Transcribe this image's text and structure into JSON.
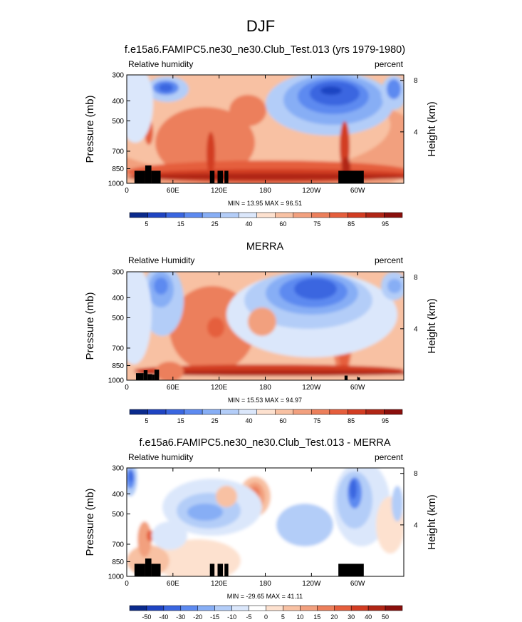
{
  "figure": {
    "title": "DJF",
    "colors": {
      "rh_levels": [
        "#0a2a8c",
        "#1f44c2",
        "#3a66e0",
        "#5d8af0",
        "#87aef5",
        "#b3cdf8",
        "#dbe7fb",
        "#fde1cf",
        "#f8c1a3",
        "#f2a07e",
        "#ec7f5b",
        "#e55e3c",
        "#d23c22",
        "#b02515",
        "#8a0f0c"
      ],
      "diff_levels": [
        "#0a2a8c",
        "#1f44c2",
        "#3a66e0",
        "#5d8af0",
        "#87aef5",
        "#b3cdf8",
        "#dbe7fb",
        "#ffffff",
        "#fde1cf",
        "#f8c1a3",
        "#f2a07e",
        "#ec7f5b",
        "#e55e3c",
        "#d23c22",
        "#b02515",
        "#8a0f0c"
      ],
      "terrain": "#000000"
    }
  },
  "chart_data": [
    {
      "type": "heatmap",
      "title": "f.e15a6.FAMIPC5.ne30_ne30.Club_Test.013 (yrs 1979-1980)",
      "left_label": "Relative humidity",
      "right_label": "percent",
      "ylabel": "Pressure (mb)",
      "y2label": "Height (km)",
      "x_ticks": [
        "0",
        "60E",
        "120E",
        "180",
        "120W",
        "60W"
      ],
      "x_tick_lon": [
        0,
        60,
        120,
        180,
        240,
        300
      ],
      "xlim": [
        0,
        360
      ],
      "y_ticks": [
        300,
        400,
        500,
        700,
        850,
        1000
      ],
      "ylim": [
        1000,
        300
      ],
      "y2_ticks": [
        "8",
        "4"
      ],
      "y2_tick_km": [
        8,
        4
      ],
      "stats": "MIN =  13.95   MAX =  96.51",
      "min": 13.95,
      "max": 96.51,
      "colorbar_labels": [
        "5",
        "15",
        "25",
        "40",
        "60",
        "75",
        "85",
        "95"
      ],
      "colorbar_levels": [
        5,
        10,
        15,
        20,
        25,
        30,
        40,
        50,
        60,
        70,
        75,
        80,
        85,
        90,
        95
      ]
    },
    {
      "type": "heatmap",
      "title": "MERRA",
      "left_label": "Relative Humidity",
      "right_label": "percent",
      "ylabel": "Pressure (mb)",
      "y2label": "Height (km)",
      "x_ticks": [
        "0",
        "60E",
        "120E",
        "180",
        "120W",
        "60W"
      ],
      "x_tick_lon": [
        0,
        60,
        120,
        180,
        240,
        300
      ],
      "xlim": [
        0,
        360
      ],
      "y_ticks": [
        300,
        400,
        500,
        700,
        850,
        1000
      ],
      "ylim": [
        1000,
        300
      ],
      "y2_ticks": [
        "8",
        "4"
      ],
      "y2_tick_km": [
        8,
        4
      ],
      "stats": "MIN =  15.53   MAX =  94.97",
      "min": 15.53,
      "max": 94.97,
      "colorbar_labels": [
        "5",
        "15",
        "25",
        "40",
        "60",
        "75",
        "85",
        "95"
      ],
      "colorbar_levels": [
        5,
        10,
        15,
        20,
        25,
        30,
        40,
        50,
        60,
        70,
        75,
        80,
        85,
        90,
        95
      ]
    },
    {
      "type": "heatmap",
      "title": "f.e15a6.FAMIPC5.ne30_ne30.Club_Test.013 - MERRA",
      "left_label": "Relative humidity",
      "right_label": "percent",
      "ylabel": "Pressure (mb)",
      "y2label": "Height (km)",
      "x_ticks": [
        "0",
        "60E",
        "120E",
        "180",
        "120W",
        "60W"
      ],
      "x_tick_lon": [
        0,
        60,
        120,
        180,
        240,
        300
      ],
      "xlim": [
        0,
        360
      ],
      "y_ticks": [
        300,
        400,
        500,
        700,
        850,
        1000
      ],
      "ylim": [
        1000,
        300
      ],
      "y2_ticks": [
        "8",
        "4"
      ],
      "y2_tick_km": [
        8,
        4
      ],
      "stats": "MIN = -29.65   MAX =  41.11",
      "min": -29.65,
      "max": 41.11,
      "colorbar_labels": [
        "-50",
        "-40",
        "-30",
        "-20",
        "-15",
        "-10",
        "-5",
        "0",
        "5",
        "10",
        "15",
        "20",
        "30",
        "40",
        "50"
      ],
      "colorbar_levels": [
        -50,
        -40,
        -30,
        -20,
        -15,
        -10,
        -5,
        0,
        5,
        10,
        15,
        20,
        30,
        40,
        50
      ]
    }
  ]
}
